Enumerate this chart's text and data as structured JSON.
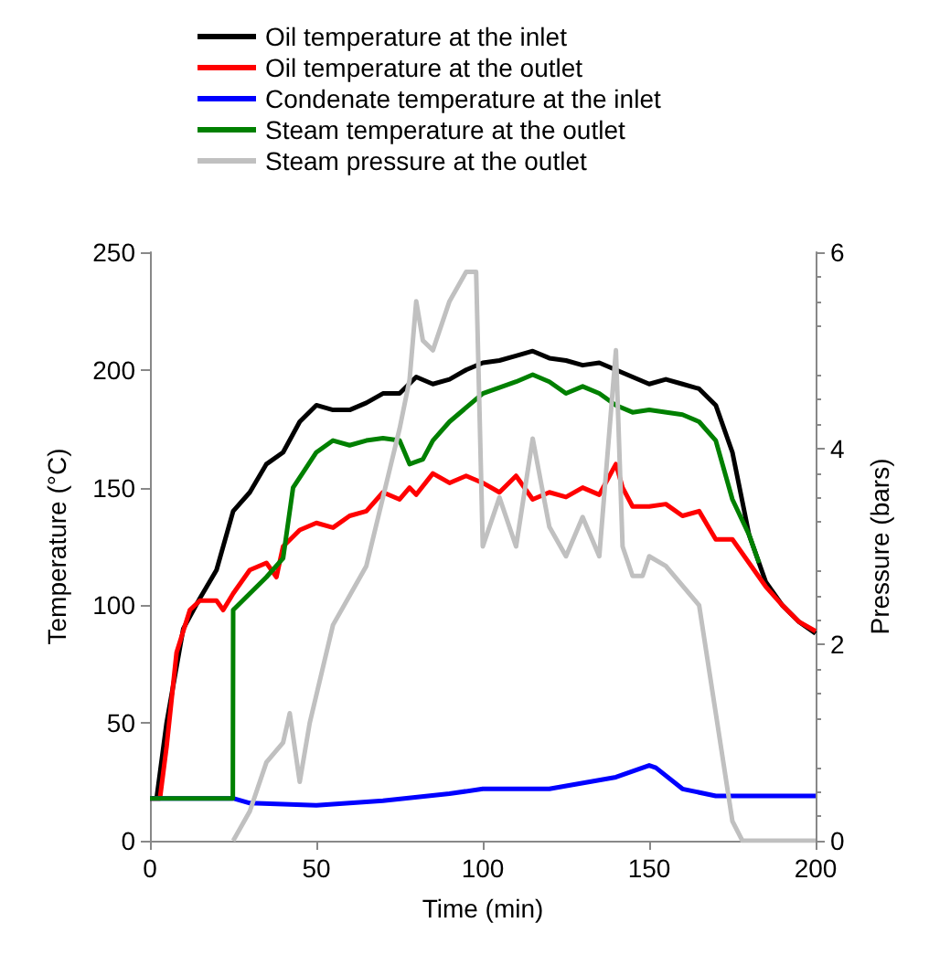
{
  "chart_data": {
    "type": "line",
    "xlabel": "Time (min)",
    "ylabel": "Temperature (°C)",
    "y2label": "Pressure (bars)",
    "xlim": [
      0,
      200
    ],
    "xticks": [
      0,
      50,
      100,
      150,
      200
    ],
    "ylim": [
      0,
      250
    ],
    "yticks": [
      0,
      50,
      100,
      150,
      200,
      250
    ],
    "y2lim": [
      0,
      6
    ],
    "y2ticks": [
      0,
      2,
      4,
      6
    ],
    "grid": false,
    "legend": "top",
    "marker": "none",
    "line_style": "solid",
    "series": [
      {
        "name": "Oil temperature at the inlet",
        "color": "#000000",
        "x": [
          2,
          5,
          10,
          15,
          20,
          25,
          30,
          35,
          40,
          45,
          50,
          55,
          60,
          65,
          70,
          75,
          80,
          85,
          90,
          95,
          100,
          105,
          110,
          115,
          120,
          125,
          130,
          135,
          140,
          145,
          150,
          155,
          160,
          165,
          170,
          175,
          180,
          185,
          190,
          195,
          200
        ],
        "values": [
          18,
          50,
          90,
          103,
          115,
          140,
          148,
          160,
          165,
          178,
          185,
          183,
          183,
          186,
          190,
          190,
          197,
          194,
          196,
          200,
          203,
          204,
          206,
          208,
          205,
          204,
          202,
          203,
          200,
          197,
          194,
          196,
          194,
          192,
          185,
          165,
          130,
          110,
          100,
          93,
          88
        ]
      },
      {
        "name": "Oil temperature at the outlet",
        "color": "#ff0000",
        "x": [
          0,
          3,
          5,
          8,
          12,
          15,
          20,
          22,
          25,
          30,
          35,
          38,
          40,
          45,
          50,
          55,
          60,
          65,
          70,
          75,
          78,
          80,
          85,
          90,
          95,
          100,
          105,
          110,
          115,
          120,
          125,
          130,
          135,
          140,
          142,
          145,
          150,
          155,
          160,
          165,
          170,
          175,
          180,
          185,
          190,
          195,
          200
        ],
        "values": [
          18,
          18,
          40,
          80,
          98,
          102,
          102,
          98,
          105,
          115,
          118,
          112,
          125,
          132,
          135,
          133,
          138,
          140,
          148,
          145,
          150,
          147,
          156,
          152,
          155,
          152,
          148,
          155,
          145,
          148,
          146,
          150,
          147,
          160,
          150,
          142,
          142,
          143,
          138,
          140,
          128,
          128,
          118,
          108,
          100,
          93,
          89
        ]
      },
      {
        "name": "Condenate temperature at the inlet",
        "color": "#0000ff",
        "x": [
          0,
          25,
          30,
          50,
          70,
          90,
          100,
          120,
          140,
          150,
          152,
          160,
          170,
          200
        ],
        "values": [
          18,
          18,
          16,
          15,
          17,
          20,
          22,
          22,
          27,
          32,
          31,
          22,
          19,
          19
        ]
      },
      {
        "name": "Steam temperature at the outlet",
        "color": "#008000",
        "x": [
          0,
          24.9,
          25,
          30,
          35,
          40,
          43,
          50,
          55,
          60,
          65,
          70,
          75,
          78,
          82,
          85,
          90,
          100,
          110,
          115,
          120,
          125,
          130,
          135,
          140,
          145,
          150,
          160,
          165,
          170,
          175,
          180,
          183
        ],
        "values": [
          18,
          18,
          98,
          105,
          112,
          120,
          150,
          165,
          170,
          168,
          170,
          171,
          170,
          160,
          162,
          170,
          178,
          190,
          195,
          198,
          195,
          190,
          193,
          190,
          185,
          182,
          183,
          181,
          178,
          170,
          145,
          130,
          118
        ]
      },
      {
        "name": "Steam pressure at the outlet",
        "color": "#c0c0c0",
        "axis": "y2",
        "x": [
          25,
          30,
          35,
          40,
          42,
          45,
          48,
          55,
          60,
          65,
          70,
          75,
          78,
          80,
          82,
          85,
          90,
          95,
          98,
          100,
          105,
          110,
          115,
          120,
          125,
          130,
          135,
          140,
          142,
          145,
          148,
          150,
          155,
          160,
          165,
          170,
          175,
          178,
          200
        ],
        "values": [
          0,
          0.3,
          0.8,
          1.0,
          1.3,
          0.6,
          1.2,
          2.2,
          2.5,
          2.8,
          3.5,
          4.2,
          4.7,
          5.5,
          5.1,
          5.0,
          5.5,
          5.8,
          5.8,
          3.0,
          3.5,
          3.0,
          4.1,
          3.2,
          2.9,
          3.3,
          2.9,
          5.0,
          3.0,
          2.7,
          2.7,
          2.9,
          2.8,
          2.6,
          2.4,
          1.3,
          0.2,
          0,
          0
        ]
      }
    ]
  }
}
